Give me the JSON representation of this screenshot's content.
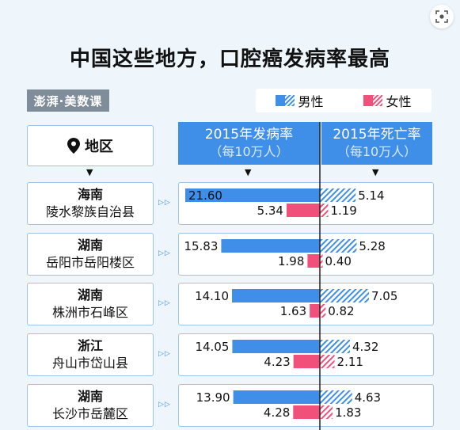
{
  "title": "中国这些地方，口腔癌发病率最高",
  "brand": "澎湃·美数课",
  "legend": {
    "male": "男性",
    "female": "女性"
  },
  "header": {
    "region": "地区",
    "incidence_line1": "2015年发病率",
    "incidence_line2": "（每10万人）",
    "mortality_line1": "2015年死亡率",
    "mortality_line2": "（每10万人）"
  },
  "colors": {
    "male": "#3f8ee8",
    "female": "#f0507a",
    "divider": "#222222"
  },
  "rows": [
    {
      "province": "海南",
      "county": "陵水黎族自治县"
    },
    {
      "province": "湖南",
      "county": "岳阳市岳阳楼区"
    },
    {
      "province": "湖南",
      "county": "株洲市石峰区"
    },
    {
      "province": "浙江",
      "county": "舟山市岱山县"
    },
    {
      "province": "湖南",
      "county": "长沙市岳麓区"
    }
  ],
  "chart_data": {
    "type": "bar",
    "title": "中国这些地方，口腔癌发病率最高",
    "categories": [
      "陵水黎族自治县",
      "岳阳市岳阳楼区",
      "株洲市石峰区",
      "舟山市岱山县",
      "长沙市岳麓区"
    ],
    "series": [
      {
        "name": "男性 2015年发病率",
        "values": [
          21.6,
          15.83,
          14.1,
          14.05,
          13.9
        ]
      },
      {
        "name": "女性 2015年发病率",
        "values": [
          5.34,
          1.98,
          1.63,
          4.23,
          4.28
        ]
      },
      {
        "name": "男性 2015年死亡率",
        "values": [
          5.14,
          5.28,
          7.05,
          4.32,
          4.63
        ]
      },
      {
        "name": "女性 2015年死亡率",
        "values": [
          1.19,
          0.4,
          0.82,
          2.11,
          1.83
        ]
      }
    ],
    "value_labels": {
      "male_incidence": [
        "21.60",
        "15.83",
        "14.10",
        "14.05",
        "13.90"
      ],
      "female_incidence": [
        "5.34",
        "1.98",
        "1.63",
        "4.23",
        "4.28"
      ],
      "male_mortality": [
        "5.14",
        "5.28",
        "7.05",
        "4.32",
        "4.63"
      ],
      "female_mortality": [
        "1.19",
        "0.40",
        "0.82",
        "2.11",
        "1.83"
      ]
    }
  }
}
